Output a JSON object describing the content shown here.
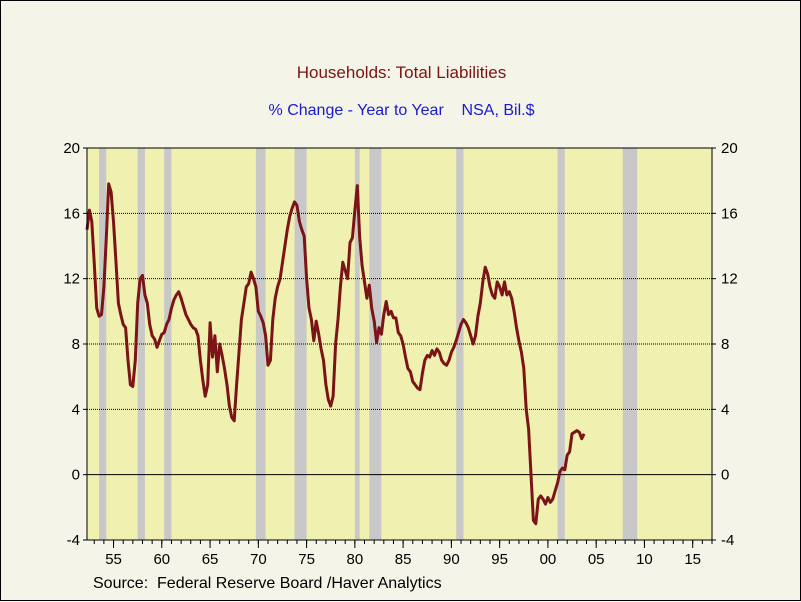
{
  "title": "Households: Total Liabilities",
  "subtitle": "% Change - Year to Year    NSA, Bil.$",
  "source": "Source:  Federal Reserve Board /Haver Analytics",
  "colors": {
    "plot_bg": "#f0f0b0",
    "line": "#7b1416",
    "recession": "#c8c8c8",
    "title": "#7b1416",
    "subtitle": "#1a1ad0"
  },
  "chart_data": {
    "type": "line",
    "title": "Households: Total Liabilities",
    "subtitle": "% Change - Year to Year    NSA, Bil.$",
    "xlim": [
      1952.25,
      2017.0
    ],
    "ylim": [
      -4,
      20
    ],
    "yticks": [
      -4,
      0,
      4,
      8,
      12,
      16,
      20
    ],
    "xticks": [
      {
        "value": 1955,
        "label": "55"
      },
      {
        "value": 1960,
        "label": "60"
      },
      {
        "value": 1965,
        "label": "65"
      },
      {
        "value": 1970,
        "label": "70"
      },
      {
        "value": 1975,
        "label": "75"
      },
      {
        "value": 1980,
        "label": "80"
      },
      {
        "value": 1985,
        "label": "85"
      },
      {
        "value": 1990,
        "label": "90"
      },
      {
        "value": 1995,
        "label": "95"
      },
      {
        "value": 2000,
        "label": "00"
      },
      {
        "value": 2005,
        "label": "05"
      },
      {
        "value": 2010,
        "label": "10"
      },
      {
        "value": 2015,
        "label": "15"
      }
    ],
    "grid": "horizontal",
    "recessions": [
      [
        1953.5,
        1954.25
      ],
      [
        1957.5,
        1958.25
      ],
      [
        1960.25,
        1961.0
      ],
      [
        1969.75,
        1970.75
      ],
      [
        1973.75,
        1975.0
      ],
      [
        1980.0,
        1980.5
      ],
      [
        1981.5,
        1982.75
      ],
      [
        1990.5,
        1991.25
      ],
      [
        2001.0,
        2001.75
      ],
      [
        2007.75,
        2009.25
      ]
    ],
    "series": [
      {
        "values": [
          [
            1952.25,
            15.0
          ],
          [
            1952.5,
            16.2
          ],
          [
            1952.75,
            15.5
          ],
          [
            1953.0,
            13.0
          ],
          [
            1953.25,
            10.2
          ],
          [
            1953.5,
            9.7
          ],
          [
            1953.75,
            9.8
          ],
          [
            1954.0,
            11.5
          ],
          [
            1954.25,
            14.5
          ],
          [
            1954.5,
            17.8
          ],
          [
            1954.75,
            17.3
          ],
          [
            1955.0,
            15.5
          ],
          [
            1955.25,
            13.0
          ],
          [
            1955.5,
            10.5
          ],
          [
            1955.75,
            9.8
          ],
          [
            1956.0,
            9.2
          ],
          [
            1956.25,
            9.0
          ],
          [
            1956.5,
            7.0
          ],
          [
            1956.75,
            5.5
          ],
          [
            1957.0,
            5.4
          ],
          [
            1957.25,
            7.0
          ],
          [
            1957.5,
            10.5
          ],
          [
            1957.75,
            12.0
          ],
          [
            1958.0,
            12.2
          ],
          [
            1958.25,
            11.0
          ],
          [
            1958.5,
            10.5
          ],
          [
            1958.75,
            9.2
          ],
          [
            1959.0,
            8.5
          ],
          [
            1959.25,
            8.3
          ],
          [
            1959.5,
            7.8
          ],
          [
            1959.75,
            8.2
          ],
          [
            1960.0,
            8.6
          ],
          [
            1960.25,
            8.7
          ],
          [
            1960.5,
            9.2
          ],
          [
            1960.75,
            9.5
          ],
          [
            1961.0,
            10.2
          ],
          [
            1961.25,
            10.7
          ],
          [
            1961.5,
            11.0
          ],
          [
            1961.75,
            11.2
          ],
          [
            1962.0,
            10.8
          ],
          [
            1962.25,
            10.3
          ],
          [
            1962.5,
            9.8
          ],
          [
            1962.75,
            9.5
          ],
          [
            1963.0,
            9.2
          ],
          [
            1963.25,
            9.0
          ],
          [
            1963.5,
            8.9
          ],
          [
            1963.75,
            8.5
          ],
          [
            1964.0,
            7.0
          ],
          [
            1964.25,
            5.8
          ],
          [
            1964.5,
            4.8
          ],
          [
            1964.75,
            5.5
          ],
          [
            1965.0,
            9.3
          ],
          [
            1965.25,
            7.2
          ],
          [
            1965.5,
            8.5
          ],
          [
            1965.75,
            6.3
          ],
          [
            1966.0,
            8.0
          ],
          [
            1966.25,
            7.3
          ],
          [
            1966.5,
            6.5
          ],
          [
            1966.75,
            5.5
          ],
          [
            1967.0,
            4.2
          ],
          [
            1967.25,
            3.5
          ],
          [
            1967.5,
            3.3
          ],
          [
            1967.75,
            5.5
          ],
          [
            1968.0,
            7.5
          ],
          [
            1968.25,
            9.5
          ],
          [
            1968.5,
            10.5
          ],
          [
            1968.75,
            11.5
          ],
          [
            1969.0,
            11.7
          ],
          [
            1969.25,
            12.4
          ],
          [
            1969.5,
            12.0
          ],
          [
            1969.75,
            11.5
          ],
          [
            1970.0,
            10.0
          ],
          [
            1970.25,
            9.7
          ],
          [
            1970.5,
            9.3
          ],
          [
            1970.75,
            8.5
          ],
          [
            1971.0,
            6.7
          ],
          [
            1971.25,
            7.0
          ],
          [
            1971.5,
            9.5
          ],
          [
            1971.75,
            10.8
          ],
          [
            1972.0,
            11.5
          ],
          [
            1972.25,
            12.0
          ],
          [
            1972.5,
            13.0
          ],
          [
            1972.75,
            14.0
          ],
          [
            1973.0,
            15.0
          ],
          [
            1973.25,
            15.8
          ],
          [
            1973.5,
            16.3
          ],
          [
            1973.75,
            16.7
          ],
          [
            1974.0,
            16.5
          ],
          [
            1974.25,
            15.5
          ],
          [
            1974.5,
            15.0
          ],
          [
            1974.75,
            14.6
          ],
          [
            1975.0,
            12.0
          ],
          [
            1975.25,
            10.2
          ],
          [
            1975.5,
            9.5
          ],
          [
            1975.75,
            8.2
          ],
          [
            1976.0,
            9.4
          ],
          [
            1976.25,
            8.6
          ],
          [
            1976.5,
            7.7
          ],
          [
            1976.75,
            7.0
          ],
          [
            1977.0,
            5.5
          ],
          [
            1977.25,
            4.6
          ],
          [
            1977.5,
            4.2
          ],
          [
            1977.75,
            4.8
          ],
          [
            1978.0,
            8.0
          ],
          [
            1978.25,
            9.5
          ],
          [
            1978.5,
            11.5
          ],
          [
            1978.75,
            13.0
          ],
          [
            1979.0,
            12.5
          ],
          [
            1979.25,
            12.0
          ],
          [
            1979.5,
            14.2
          ],
          [
            1979.75,
            14.5
          ],
          [
            1980.0,
            16.2
          ],
          [
            1980.25,
            17.7
          ],
          [
            1980.5,
            14.5
          ],
          [
            1980.75,
            12.8
          ],
          [
            1981.0,
            11.8
          ],
          [
            1981.25,
            10.8
          ],
          [
            1981.5,
            11.6
          ],
          [
            1981.75,
            10.2
          ],
          [
            1982.0,
            9.4
          ],
          [
            1982.25,
            8.1
          ],
          [
            1982.5,
            9.0
          ],
          [
            1982.75,
            8.6
          ],
          [
            1983.0,
            9.8
          ],
          [
            1983.25,
            10.6
          ],
          [
            1983.5,
            9.8
          ],
          [
            1983.75,
            10.0
          ],
          [
            1984.0,
            9.6
          ],
          [
            1984.25,
            9.6
          ],
          [
            1984.5,
            8.7
          ],
          [
            1984.75,
            8.5
          ],
          [
            1985.0,
            8.0
          ],
          [
            1985.25,
            7.2
          ],
          [
            1985.5,
            6.5
          ],
          [
            1985.75,
            6.3
          ],
          [
            1986.0,
            5.7
          ],
          [
            1986.25,
            5.5
          ],
          [
            1986.5,
            5.3
          ],
          [
            1986.75,
            5.2
          ],
          [
            1987.0,
            6.2
          ],
          [
            1987.25,
            7.0
          ],
          [
            1987.5,
            7.3
          ],
          [
            1987.75,
            7.2
          ],
          [
            1988.0,
            7.6
          ],
          [
            1988.25,
            7.3
          ],
          [
            1988.5,
            7.7
          ],
          [
            1988.75,
            7.5
          ],
          [
            1989.0,
            7.0
          ],
          [
            1989.25,
            6.8
          ],
          [
            1989.5,
            6.7
          ],
          [
            1989.75,
            7.0
          ],
          [
            1990.0,
            7.5
          ],
          [
            1990.25,
            7.8
          ],
          [
            1990.5,
            8.2
          ],
          [
            1990.75,
            8.7
          ],
          [
            1991.0,
            9.2
          ],
          [
            1991.25,
            9.5
          ],
          [
            1991.5,
            9.3
          ],
          [
            1991.75,
            9.0
          ],
          [
            1992.0,
            8.5
          ],
          [
            1992.25,
            8.0
          ],
          [
            1992.5,
            8.5
          ],
          [
            1992.75,
            9.7
          ],
          [
            1993.0,
            10.5
          ],
          [
            1993.25,
            11.8
          ],
          [
            1993.5,
            12.7
          ],
          [
            1993.75,
            12.3
          ],
          [
            1994.0,
            11.5
          ],
          [
            1994.25,
            11.0
          ],
          [
            1994.5,
            10.8
          ],
          [
            1994.75,
            11.8
          ],
          [
            1995.0,
            11.5
          ],
          [
            1995.25,
            11.0
          ],
          [
            1995.5,
            11.8
          ],
          [
            1995.75,
            11.0
          ],
          [
            1996.0,
            11.2
          ],
          [
            1996.25,
            10.8
          ],
          [
            1996.5,
            10.0
          ],
          [
            1996.75,
            9.0
          ],
          [
            1997.0,
            8.2
          ],
          [
            1997.25,
            7.5
          ],
          [
            1997.5,
            6.5
          ],
          [
            1997.75,
            4.0
          ],
          [
            1998.0,
            2.8
          ],
          [
            1998.25,
            0.0
          ],
          [
            1998.5,
            -2.8
          ],
          [
            1998.75,
            -3.0
          ],
          [
            1999.0,
            -1.5
          ],
          [
            1999.25,
            -1.3
          ],
          [
            1999.5,
            -1.5
          ],
          [
            1999.75,
            -1.8
          ],
          [
            2000.0,
            -1.4
          ],
          [
            2000.25,
            -1.7
          ],
          [
            2000.5,
            -1.5
          ],
          [
            2000.75,
            -1.0
          ],
          [
            2001.0,
            -0.5
          ],
          [
            2001.25,
            0.2
          ],
          [
            2001.5,
            0.4
          ],
          [
            2001.75,
            0.3
          ],
          [
            2002.0,
            1.2
          ],
          [
            2002.25,
            1.4
          ],
          [
            2002.5,
            2.5
          ],
          [
            2002.75,
            2.6
          ],
          [
            2003.0,
            2.7
          ],
          [
            2003.25,
            2.6
          ],
          [
            2003.5,
            2.2
          ],
          [
            2003.75,
            2.5
          ]
        ]
      }
    ]
  }
}
